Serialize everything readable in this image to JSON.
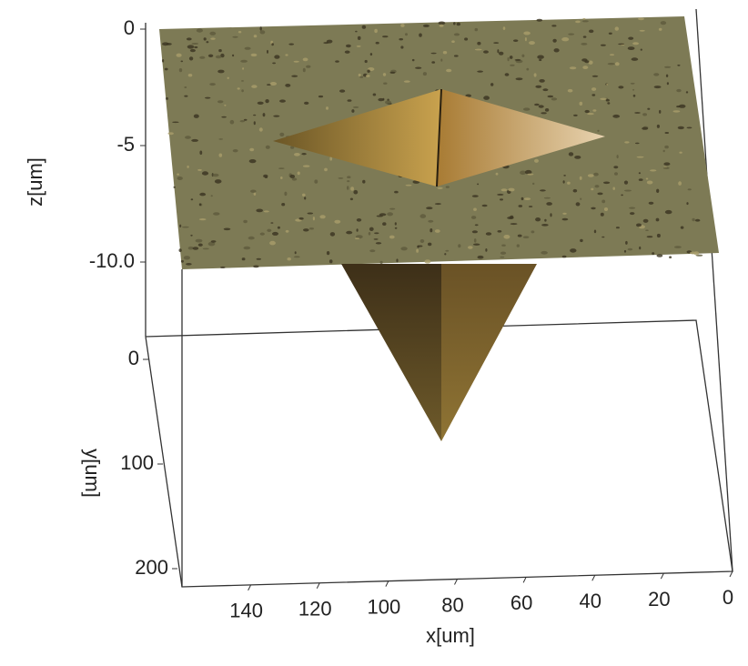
{
  "chart_data": {
    "type": "surface3d",
    "xlabel": "x[um]",
    "ylabel": "y[um]",
    "zlabel": "z[um]",
    "xlim": [
      0,
      160
    ],
    "xticks": [
      140,
      120,
      100,
      80,
      60,
      40,
      20,
      0
    ],
    "ylim": [
      0,
      200
    ],
    "yticks": [
      0,
      100,
      200
    ],
    "zlim": [
      -13,
      0
    ],
    "zticks": [
      0,
      -5,
      {
        "value": -10,
        "label": "-10.0"
      }
    ]
  }
}
